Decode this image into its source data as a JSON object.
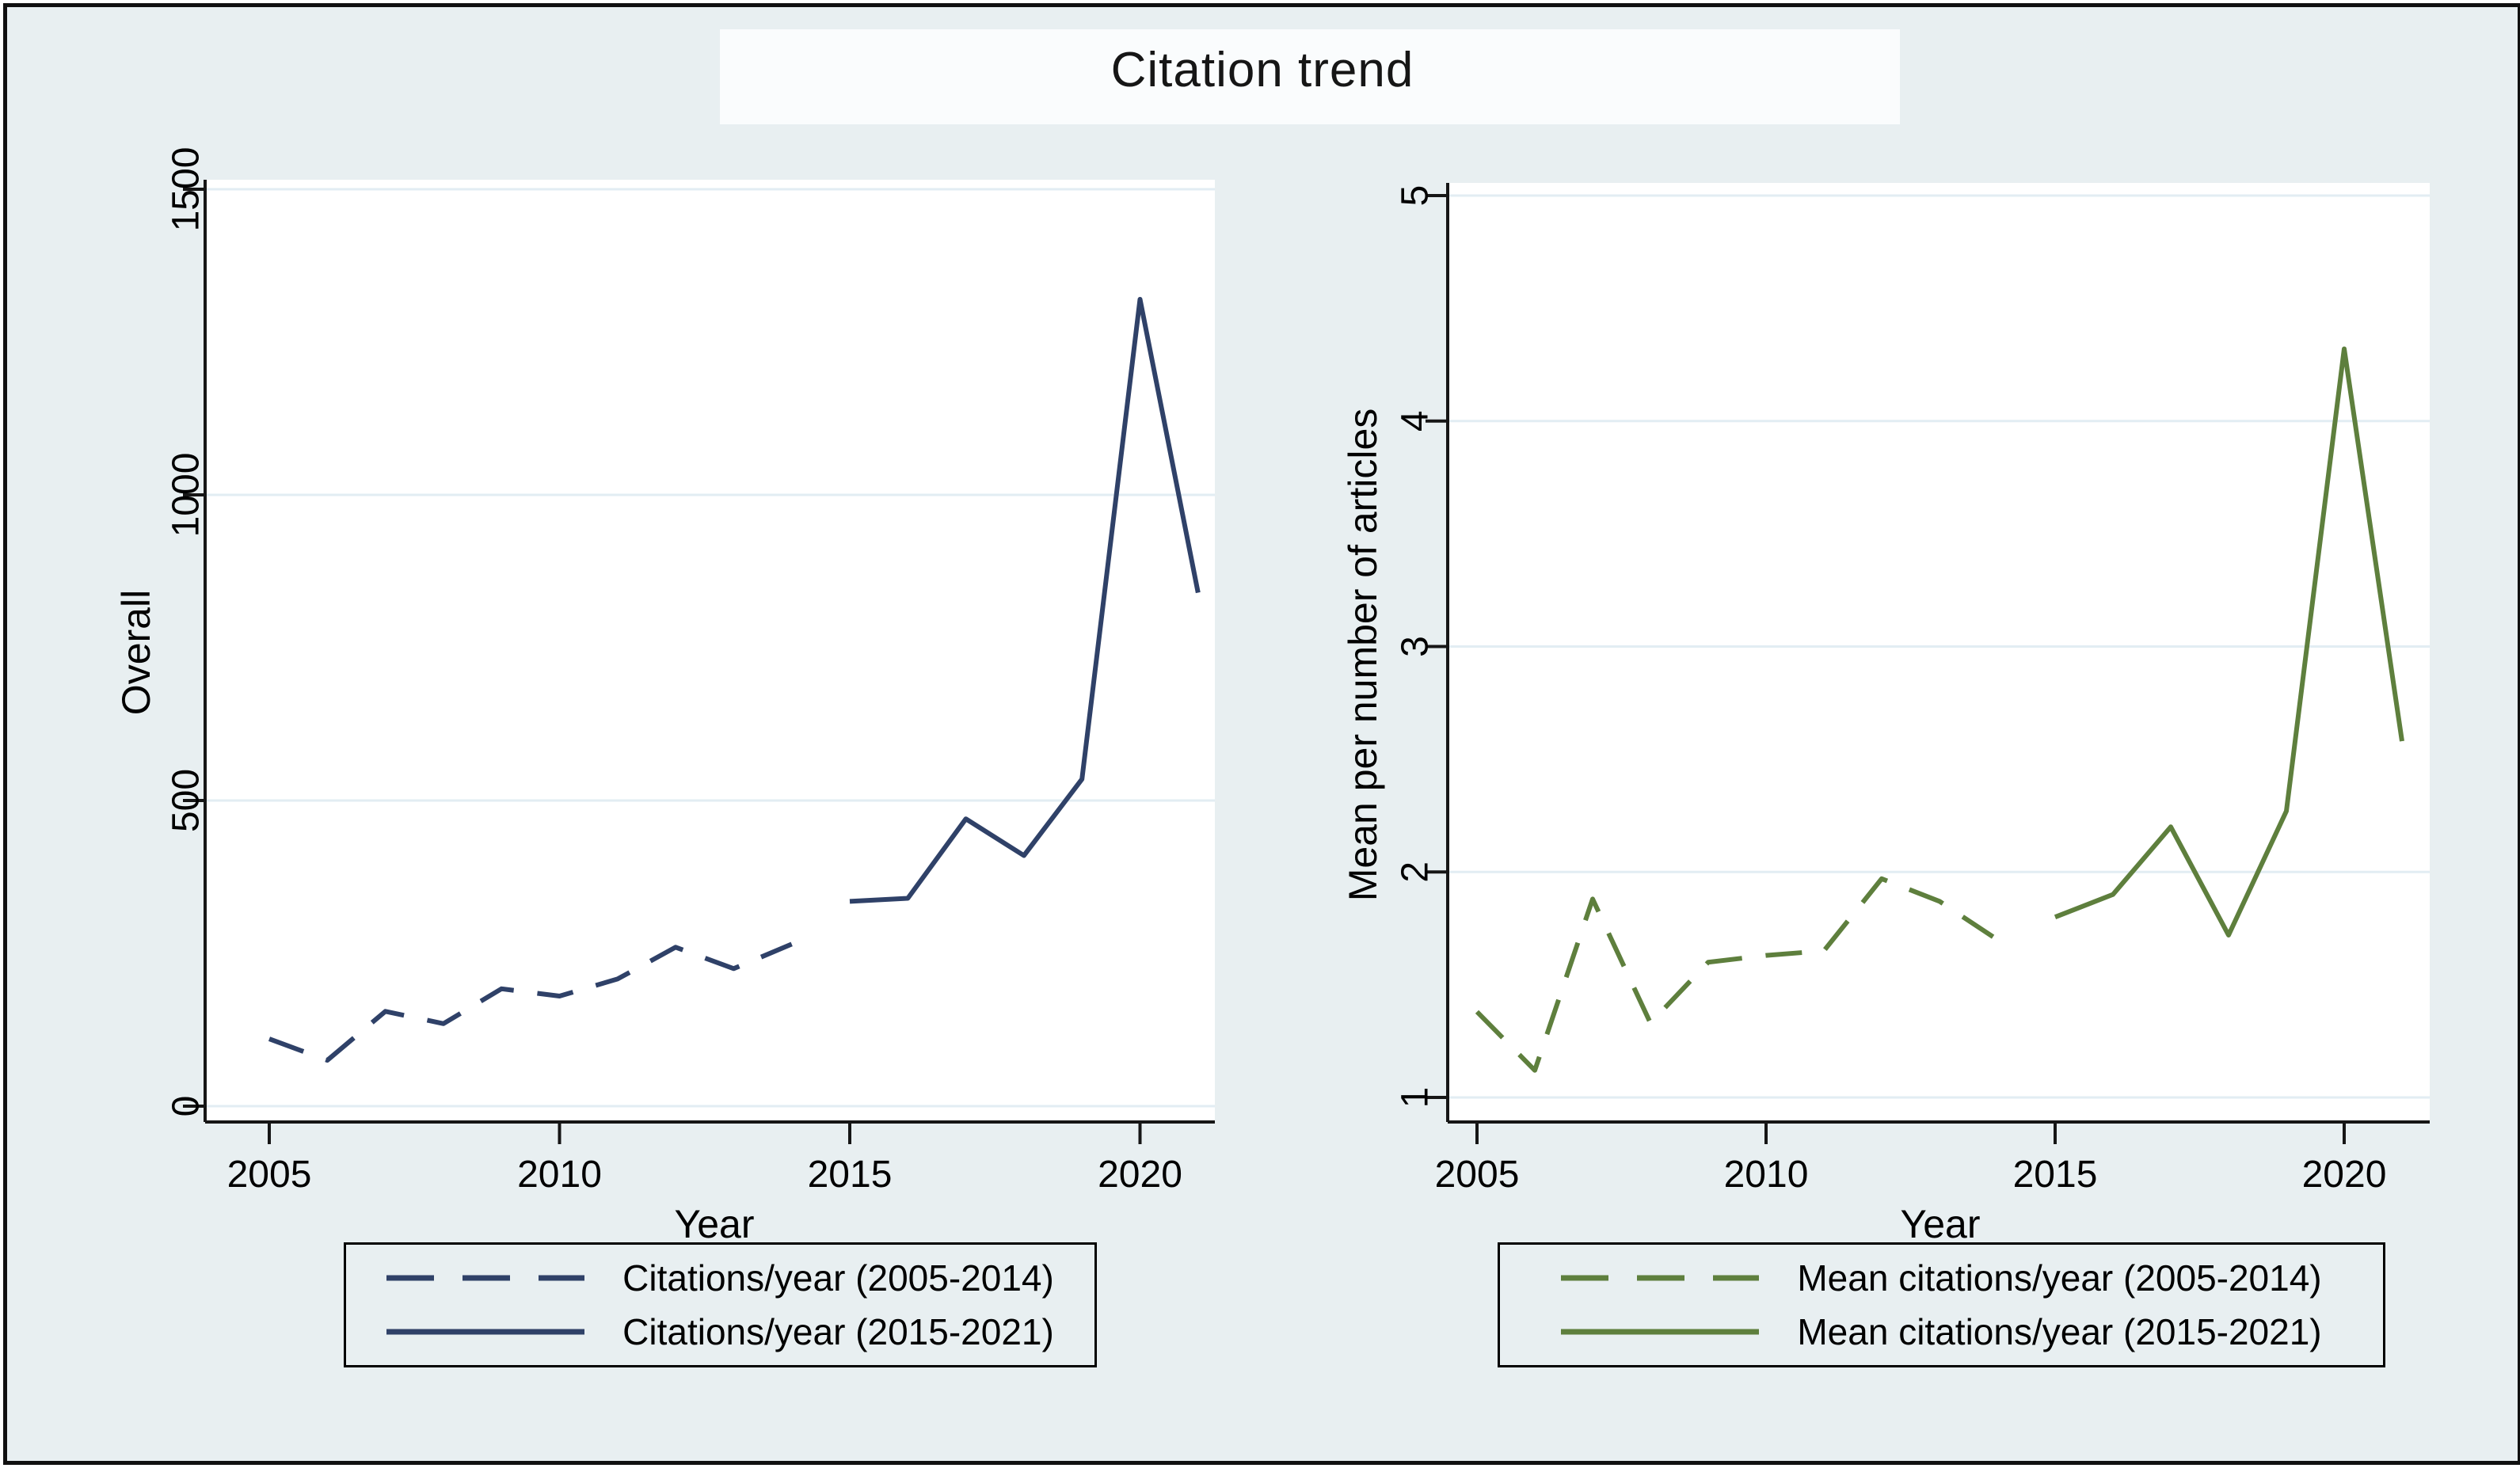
{
  "title": "Citation trend",
  "colors": {
    "background": "#e8eff1",
    "plot_background": "#ffffff",
    "gridline": "#e2edf3",
    "axis": "#161616",
    "navy": "#2f4168",
    "green": "#5e7f3d",
    "text": "#000000"
  },
  "chart_data": [
    {
      "type": "line",
      "panel": "left",
      "title": "Citation trend",
      "ylabel": "Overall",
      "xlabel": "Year",
      "ylim": [
        0,
        1500
      ],
      "yticks": [
        0,
        500,
        1000,
        1500
      ],
      "xticks": [
        2005,
        2010,
        2015,
        2020
      ],
      "grid": true,
      "legend_position": "bottom",
      "line_color": "#2f4168",
      "series": [
        {
          "name": "Citations/year (2005-2014)",
          "style": "dashed",
          "x": [
            2005,
            2006,
            2007,
            2008,
            2009,
            2010,
            2011,
            2012,
            2013,
            2014
          ],
          "y": [
            110,
            75,
            155,
            135,
            192,
            180,
            208,
            260,
            225,
            265
          ]
        },
        {
          "name": "Citations/year (2015-2021)",
          "style": "solid",
          "x": [
            2015,
            2016,
            2017,
            2018,
            2019,
            2020,
            2021
          ],
          "y": [
            335,
            340,
            470,
            410,
            535,
            1320,
            840
          ]
        }
      ]
    },
    {
      "type": "line",
      "panel": "right",
      "title": "Citation trend",
      "ylabel": "Mean per number of articles",
      "xlabel": "Year",
      "ylim": [
        1,
        5
      ],
      "yticks": [
        1,
        2,
        3,
        4,
        5
      ],
      "xticks": [
        2005,
        2010,
        2015,
        2020
      ],
      "grid": true,
      "legend_position": "bottom",
      "line_color": "#5e7f3d",
      "series": [
        {
          "name": "Mean citations/year (2005-2014)",
          "style": "dashed",
          "x": [
            2005,
            2006,
            2007,
            2008,
            2009,
            2010,
            2011,
            2012,
            2013,
            2014
          ],
          "y": [
            1.38,
            1.12,
            1.88,
            1.33,
            1.6,
            1.63,
            1.65,
            1.97,
            1.87,
            1.7
          ]
        },
        {
          "name": "Mean citations/year (2015-2021)",
          "style": "solid",
          "x": [
            2015,
            2016,
            2017,
            2018,
            2019,
            2020,
            2021
          ],
          "y": [
            1.8,
            1.9,
            2.2,
            1.72,
            2.27,
            4.32,
            2.58
          ]
        }
      ]
    }
  ]
}
